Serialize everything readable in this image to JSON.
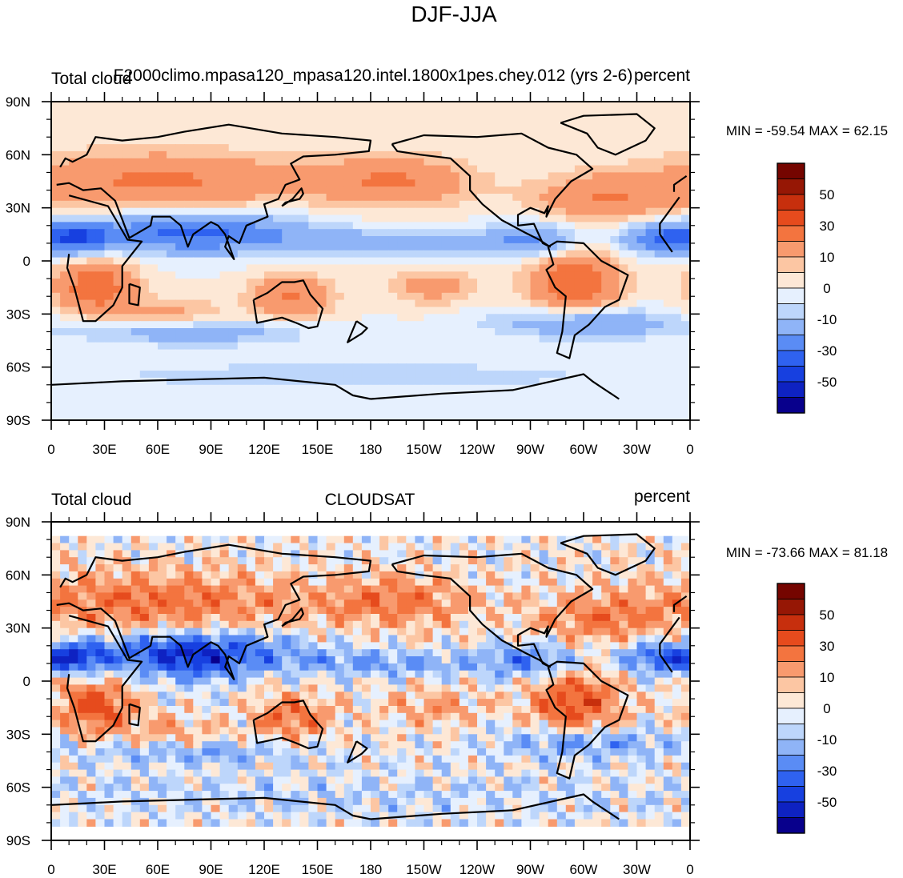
{
  "figure_title": "DJF-JJA",
  "colorbar_labels": [
    "50",
    "30",
    "10",
    "0",
    "-10",
    "-30",
    "-50"
  ],
  "colors": {
    "levels": [
      "#08008c",
      "#0e22c2",
      "#1740e0",
      "#2f62f0",
      "#5a8cf5",
      "#8fb4f7",
      "#bdd6fb",
      "#e6f0fe",
      "#fde8d6",
      "#fcc6a3",
      "#f89a6e",
      "#f3743f",
      "#e64b1d",
      "#c72f0d",
      "#961705",
      "#750500"
    ],
    "coast": "#000000"
  },
  "chart_data": [
    {
      "type": "heatmap",
      "title_left": "Total cloud",
      "title_center": "F2000climo.mpasa120_mpasa120.intel.1800x1pes.chey.012 (yrs 2-6)",
      "title_right": "percent",
      "min_max": "MIN = -59.54 MAX =  62.15",
      "x_ticks": [
        "0",
        "30E",
        "60E",
        "90E",
        "120E",
        "150E",
        "180",
        "150W",
        "120W",
        "90W",
        "60W",
        "30W",
        "0"
      ],
      "y_ticks": [
        "90N",
        "60N",
        "30N",
        "0",
        "30S",
        "60S",
        "90S"
      ],
      "lon_range": [
        0,
        360
      ],
      "lat_range": [
        -90,
        90
      ],
      "contour_levels": [
        -60,
        -50,
        -40,
        -30,
        -20,
        -10,
        -5,
        0,
        5,
        10,
        20,
        30,
        40,
        50,
        60
      ],
      "field_min": -59.54,
      "field_max": 62.15
    },
    {
      "type": "heatmap",
      "title_left": "Total cloud",
      "title_center": "CLOUDSAT",
      "title_right": "percent",
      "min_max": "MIN = -73.66 MAX =  81.18",
      "x_ticks": [
        "0",
        "30E",
        "60E",
        "90E",
        "120E",
        "150E",
        "180",
        "150W",
        "120W",
        "90W",
        "60W",
        "30W",
        "0"
      ],
      "y_ticks": [
        "90N",
        "60N",
        "30N",
        "0",
        "30S",
        "60S",
        "90S"
      ],
      "lon_range": [
        0,
        360
      ],
      "lat_range": [
        -90,
        90
      ],
      "contour_levels": [
        -60,
        -50,
        -40,
        -30,
        -20,
        -10,
        -5,
        0,
        5,
        10,
        20,
        30,
        40,
        50,
        60
      ],
      "field_min": -73.66,
      "field_max": 81.18
    }
  ]
}
